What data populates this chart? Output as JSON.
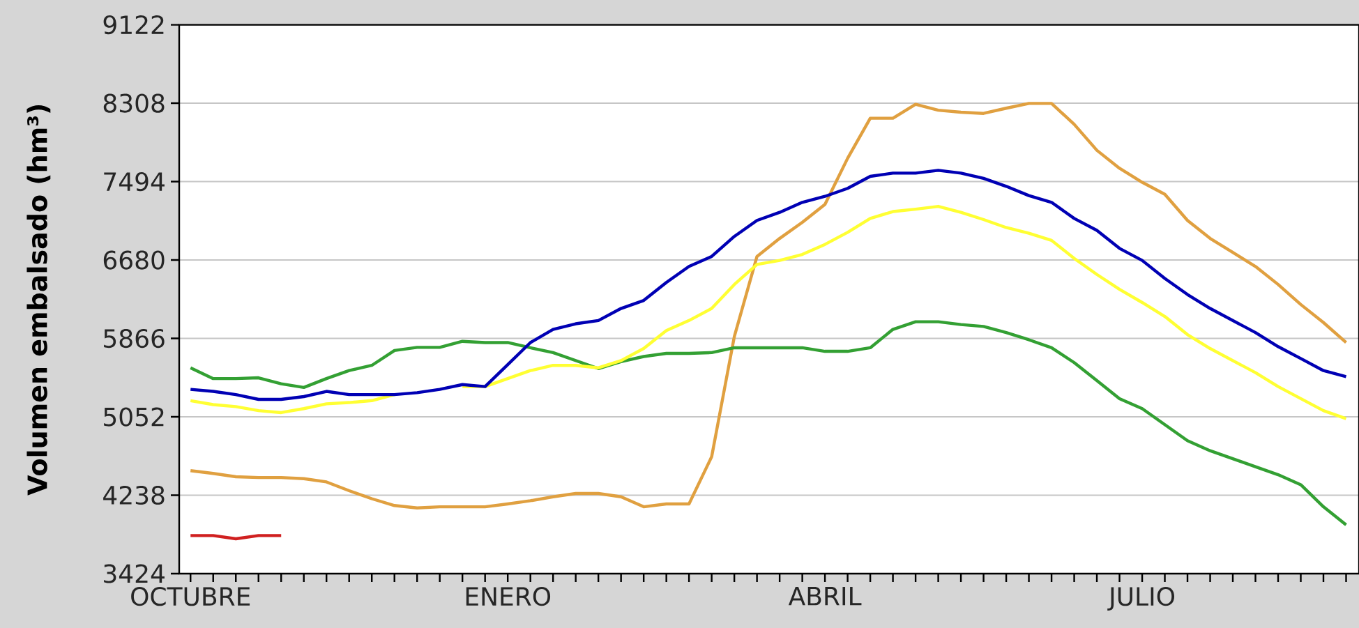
{
  "chart_data": {
    "type": "line",
    "ylabel": "Volumen embalsado (hm³)",
    "grid": "y",
    "categories": [
      "OCTUBRE",
      null,
      null,
      null,
      null,
      null,
      null,
      null,
      null,
      null,
      null,
      null,
      null,
      null,
      "ENERO",
      null,
      null,
      null,
      null,
      null,
      null,
      null,
      null,
      null,
      null,
      null,
      null,
      null,
      "ABRIL",
      null,
      null,
      null,
      null,
      null,
      null,
      null,
      null,
      null,
      null,
      null,
      null,
      null,
      "JULIO",
      null,
      null,
      null,
      null,
      null,
      null,
      null,
      null,
      null
    ],
    "ylim": [
      3424,
      9122
    ],
    "yticks": [
      3424,
      4238,
      5052,
      5866,
      6680,
      7494,
      8308,
      9122
    ],
    "series": [
      {
        "color": "#e0a040",
        "values": [
          4493,
          4464,
          4430,
          4422,
          4422,
          4410,
          4376,
          4285,
          4202,
          4131,
          4106,
          4118,
          4118,
          4118,
          4148,
          4181,
          4222,
          4256,
          4256,
          4222,
          4118,
          4148,
          4148,
          4638,
          5885,
          6717,
          6904,
          7071,
          7258,
          7736,
          8152,
          8152,
          8297,
          8235,
          8214,
          8202,
          8256,
          8306,
          8306,
          8089,
          7819,
          7632,
          7487,
          7362,
          7091,
          6904,
          6759,
          6613,
          6426,
          6218,
          6031,
          5823
        ]
      },
      {
        "color": "#33a033",
        "values": [
          5561,
          5449,
          5449,
          5457,
          5395,
          5357,
          5449,
          5532,
          5586,
          5740,
          5773,
          5773,
          5836,
          5823,
          5823,
          5769,
          5719,
          5636,
          5553,
          5624,
          5678,
          5711,
          5711,
          5719,
          5769,
          5769,
          5769,
          5769,
          5732,
          5732,
          5769,
          5960,
          6039,
          6039,
          6010,
          5990,
          5927,
          5852,
          5769,
          5615,
          5428,
          5241,
          5137,
          4971,
          4804,
          4700,
          4617,
          4534,
          4451,
          4347,
          4118,
          3931
        ]
      },
      {
        "color": "#ffff33",
        "values": [
          5220,
          5179,
          5158,
          5116,
          5096,
          5137,
          5187,
          5200,
          5220,
          5283,
          null,
          null,
          5366,
          5366,
          5449,
          5532,
          5586,
          5586,
          5561,
          5636,
          5761,
          5948,
          6052,
          6177,
          6426,
          6634,
          6676,
          6738,
          6842,
          6967,
          7112,
          7183,
          7208,
          7237,
          7175,
          7100,
          7017,
          6958,
          6884,
          6697,
          6530,
          6376,
          6239,
          6094,
          5906,
          5761,
          5636,
          5511,
          5366,
          5241,
          5116,
          5033
        ]
      },
      {
        "color": "#0000b4",
        "values": [
          5337,
          5316,
          5283,
          5233,
          5233,
          5262,
          5316,
          5283,
          5283,
          5283,
          5303,
          5337,
          5387,
          5366,
          5594,
          5823,
          5960,
          6018,
          6052,
          6177,
          6260,
          6447,
          6613,
          6717,
          6925,
          7091,
          7175,
          7279,
          7341,
          7424,
          7549,
          7582,
          7582,
          7611,
          7582,
          7528,
          7445,
          7349,
          7279,
          7112,
          6988,
          6801,
          6676,
          6489,
          6322,
          6177,
          6052,
          5927,
          5781,
          5657,
          5532,
          5470
        ]
      },
      {
        "color": "#d02020",
        "values": [
          3819,
          3819,
          3786,
          3819,
          3819,
          null,
          null,
          null,
          null,
          null,
          null,
          null,
          null,
          null,
          null,
          null,
          null,
          null,
          null,
          null,
          null,
          null,
          null,
          null,
          null,
          null,
          null,
          null,
          null,
          null,
          null,
          null,
          null,
          null,
          null,
          null,
          null,
          null,
          null,
          null,
          null,
          null,
          null,
          null,
          null,
          null,
          null,
          null,
          null,
          null,
          null,
          null
        ]
      }
    ]
  }
}
